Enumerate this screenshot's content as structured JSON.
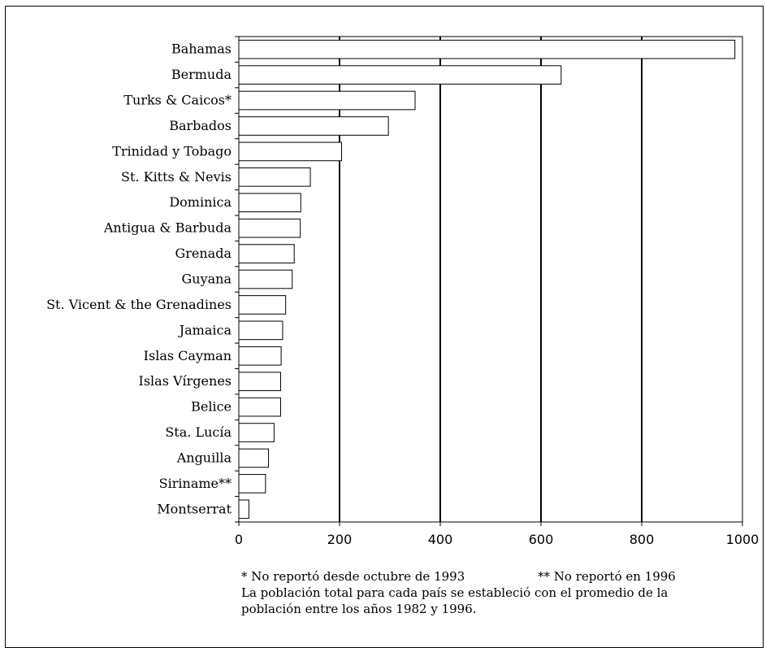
{
  "chart_data": {
    "type": "bar",
    "orientation": "horizontal",
    "categories": [
      "Bahamas",
      "Bermuda",
      "Turks & Caicos*",
      "Barbados",
      "Trinidad y Tobago",
      "St. Kitts & Nevis",
      "Dominica",
      "Antigua & Barbuda",
      "Grenada",
      "Guyana",
      "St. Vicent & the Grenadines",
      "Jamaica",
      "Islas Cayman",
      "Islas Vírgenes",
      "Belice",
      "Sta. Lucía",
      "Anguilla",
      "Siriname**",
      "Montserrat"
    ],
    "values": [
      985,
      640,
      350,
      297,
      204,
      142,
      123,
      122,
      110,
      106,
      93,
      87,
      84,
      83,
      83,
      70,
      59,
      53,
      20
    ],
    "xlim": [
      0,
      1000
    ],
    "xticks": [
      0,
      200,
      400,
      600,
      800,
      1000
    ],
    "xtick_labels": [
      "0",
      "200",
      "400",
      "600",
      "800",
      "1000"
    ],
    "grid": "vertical",
    "title": "",
    "xlabel": "",
    "ylabel": ""
  },
  "notes": {
    "line1_left": "* No reportó desde octubre de 1993",
    "line1_right": "** No reportó en 1996",
    "line2": "La población total para cada país se estableció con el promedio de la",
    "line3": "población entre los años 1982 y 1996."
  }
}
